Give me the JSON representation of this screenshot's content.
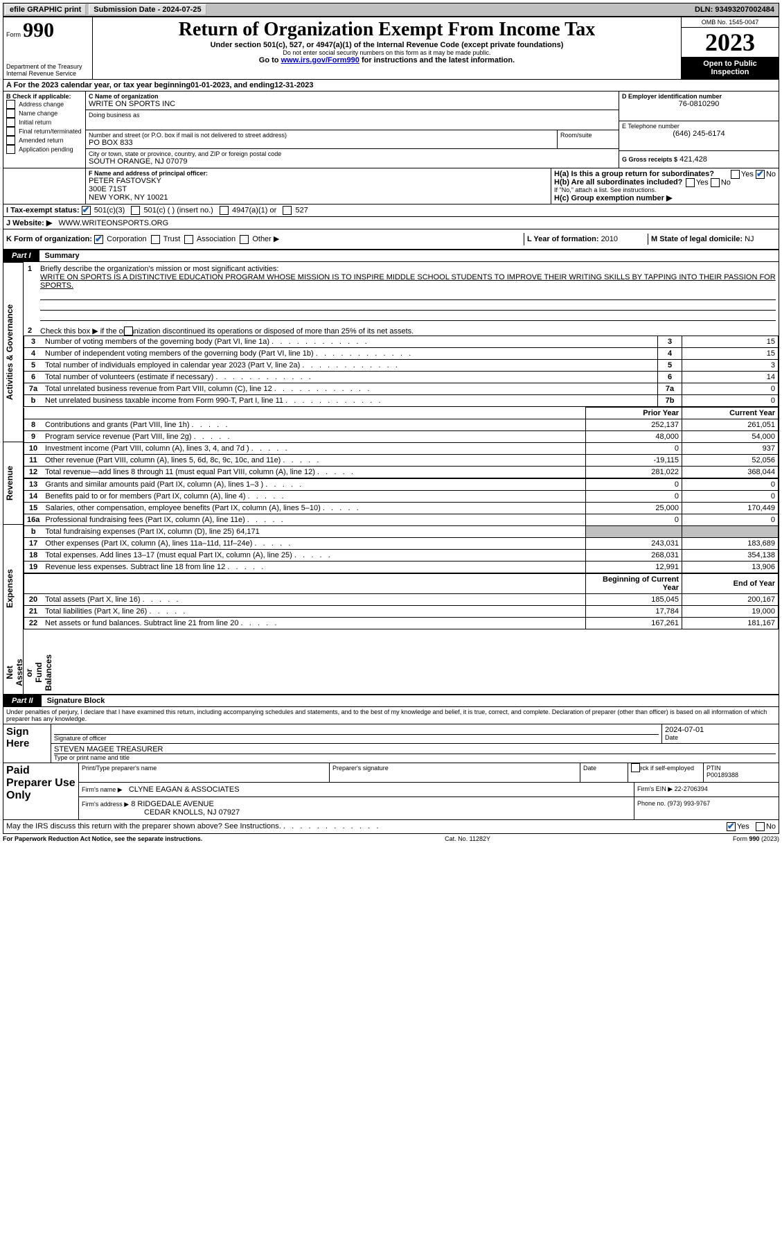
{
  "topbar": {
    "efile": "efile GRAPHIC print",
    "submission_label": "Submission Date - 2024-07-25",
    "dln_label": "DLN: 93493207002484"
  },
  "header": {
    "form_word": "Form",
    "form_number": "990",
    "title": "Return of Organization Exempt From Income Tax",
    "subtitle": "Under section 501(c), 527, or 4947(a)(1) of the Internal Revenue Code (except private foundations)",
    "warn": "Do not enter social security numbers on this form as it may be made public.",
    "goto_prefix": "Go to ",
    "goto_link": "www.irs.gov/Form990",
    "goto_suffix": " for instructions and the latest information.",
    "dept": "Department of the Treasury\nInternal Revenue Service",
    "omb": "OMB No. 1545-0047",
    "year": "2023",
    "open_public": "Open to Public\nInspection"
  },
  "lineA": {
    "prefix": "A For the 2023 calendar year, or tax year beginning ",
    "begin": "01-01-2023",
    "mid": " , and ending ",
    "end": "12-31-2023"
  },
  "boxB": {
    "heading": "B Check if applicable:",
    "items": [
      "Address change",
      "Name change",
      "Initial return",
      "Final return/terminated",
      "Amended return",
      "Application pending"
    ]
  },
  "boxC": {
    "name_label": "C Name of organization",
    "name": "WRITE ON SPORTS INC",
    "dba_label": "Doing business as",
    "dba": "",
    "street_label": "Number and street (or P.O. box if mail is not delivered to street address)",
    "street": "PO BOX 833",
    "room_label": "Room/suite",
    "room": "",
    "city_label": "City or town, state or province, country, and ZIP or foreign postal code",
    "city": "SOUTH ORANGE, NJ  07079"
  },
  "boxD": {
    "label": "D Employer identification number",
    "value": "76-0810290"
  },
  "boxE": {
    "label": "E Telephone number",
    "value": "(646) 245-6174"
  },
  "boxG": {
    "label": "G Gross receipts $",
    "value": "421,428"
  },
  "boxF": {
    "label": "F  Name and address of principal officer:",
    "line1": "PETER FASTOVSKY",
    "line2": "300E 71ST",
    "line3": "NEW YORK, NY  10021"
  },
  "boxH": {
    "ha": "H(a)  Is this a group return for subordinates?",
    "hb": "H(b)  Are all subordinates included?",
    "hb_note": "If \"No,\" attach a list. See instructions.",
    "hc": "H(c)  Group exemption number ▶",
    "yes": "Yes",
    "no": "No"
  },
  "boxI": {
    "label": "I   Tax-exempt status:",
    "c3": "501(c)(3)",
    "c_insert": "501(c) (  ) (insert no.)",
    "a1": "4947(a)(1) or",
    "s527": "527"
  },
  "boxJ": {
    "label": "J   Website: ▶",
    "value": "WWW.WRITEONSPORTS.ORG"
  },
  "boxK": {
    "label": "K Form of organization:",
    "corp": "Corporation",
    "trust": "Trust",
    "assoc": "Association",
    "other": "Other ▶"
  },
  "boxL": {
    "label": "L Year of formation: ",
    "value": "2010"
  },
  "boxM": {
    "label": "M State of legal domicile: ",
    "value": "NJ"
  },
  "part1": {
    "tag": "Part I",
    "title": "Summary"
  },
  "mission": {
    "prompt": "Briefly describe the organization's mission or most significant activities:",
    "text": "WRITE ON SPORTS IS A DISTINCTIVE EDUCATION PROGRAM WHOSE MISSION IS TO INSPIRE MIDDLE SCHOOL STUDENTS TO IMPROVE THEIR WRITING SKILLS BY TAPPING INTO THEIR PASSION FOR SPORTS."
  },
  "summary": {
    "line2": "Check this box ▶         if the organization discontinued its operations or disposed of more than 25% of its net assets.",
    "rows_top": [
      {
        "no": "3",
        "desc": "Number of voting members of the governing body (Part VI, line 1a)",
        "box": "3",
        "val": "15"
      },
      {
        "no": "4",
        "desc": "Number of independent voting members of the governing body (Part VI, line 1b)",
        "box": "4",
        "val": "15"
      },
      {
        "no": "5",
        "desc": "Total number of individuals employed in calendar year 2023 (Part V, line 2a)",
        "box": "5",
        "val": "3"
      },
      {
        "no": "6",
        "desc": "Total number of volunteers (estimate if necessary)",
        "box": "6",
        "val": "14"
      },
      {
        "no": "7a",
        "desc": "Total unrelated business revenue from Part VIII, column (C), line 12",
        "box": "7a",
        "val": "0"
      },
      {
        "no": "b",
        "desc": "Net unrelated business taxable income from Form 990-T, Part I, line 11",
        "box": "7b",
        "val": "0"
      }
    ],
    "col_prior": "Prior Year",
    "col_current": "Current Year",
    "revenue": [
      {
        "no": "8",
        "desc": "Contributions and grants (Part VIII, line 1h)",
        "prior": "252,137",
        "cur": "261,051"
      },
      {
        "no": "9",
        "desc": "Program service revenue (Part VIII, line 2g)",
        "prior": "48,000",
        "cur": "54,000"
      },
      {
        "no": "10",
        "desc": "Investment income (Part VIII, column (A), lines 3, 4, and 7d )",
        "prior": "0",
        "cur": "937"
      },
      {
        "no": "11",
        "desc": "Other revenue (Part VIII, column (A), lines 5, 6d, 8c, 9c, 10c, and 11e)",
        "prior": "-19,115",
        "cur": "52,056"
      },
      {
        "no": "12",
        "desc": "Total revenue—add lines 8 through 11 (must equal Part VIII, column (A), line 12)",
        "prior": "281,022",
        "cur": "368,044"
      }
    ],
    "expenses": [
      {
        "no": "13",
        "desc": "Grants and similar amounts paid (Part IX, column (A), lines 1–3 )",
        "prior": "0",
        "cur": "0"
      },
      {
        "no": "14",
        "desc": "Benefits paid to or for members (Part IX, column (A), line 4)",
        "prior": "0",
        "cur": "0"
      },
      {
        "no": "15",
        "desc": "Salaries, other compensation, employee benefits (Part IX, column (A), lines 5–10)",
        "prior": "25,000",
        "cur": "170,449"
      },
      {
        "no": "16a",
        "desc": "Professional fundraising fees (Part IX, column (A), line 11e)",
        "prior": "0",
        "cur": "0"
      },
      {
        "no": "b",
        "desc": "Total fundraising expenses (Part IX, column (D), line 25) 64,171",
        "prior": "",
        "cur": "",
        "shaded": true
      },
      {
        "no": "17",
        "desc": "Other expenses (Part IX, column (A), lines 11a–11d, 11f–24e)",
        "prior": "243,031",
        "cur": "183,689"
      },
      {
        "no": "18",
        "desc": "Total expenses. Add lines 13–17 (must equal Part IX, column (A), line 25)",
        "prior": "268,031",
        "cur": "354,138"
      },
      {
        "no": "19",
        "desc": "Revenue less expenses. Subtract line 18 from line 12",
        "prior": "12,991",
        "cur": "13,906"
      }
    ],
    "col_begin": "Beginning of Current Year",
    "col_end": "End of Year",
    "netassets": [
      {
        "no": "20",
        "desc": "Total assets (Part X, line 16)",
        "prior": "185,045",
        "cur": "200,167"
      },
      {
        "no": "21",
        "desc": "Total liabilities (Part X, line 26)",
        "prior": "17,784",
        "cur": "19,000"
      },
      {
        "no": "22",
        "desc": "Net assets or fund balances. Subtract line 21 from line 20",
        "prior": "167,261",
        "cur": "181,167"
      }
    ]
  },
  "side_labels": {
    "governance": "Activities & Governance",
    "revenue": "Revenue",
    "expenses": "Expenses",
    "net": "Net Assets or\nFund Balances"
  },
  "part2": {
    "tag": "Part II",
    "title": "Signature Block"
  },
  "penalties": "Under penalties of perjury, I declare that I have examined this return, including accompanying schedules and statements, and to the best of my knowledge and belief, it is true, correct, and complete. Declaration of preparer (other than officer) is based on all information of which preparer has any knowledge.",
  "signhere": {
    "label": "Sign Here",
    "sig_label": "Signature of officer",
    "date": "2024-07-01",
    "date_label": "Date",
    "name": "STEVEN MAGEE  TREASURER",
    "type_label": "Type or print name and title"
  },
  "paid": {
    "label": "Paid Preparer Use Only",
    "print_label": "Print/Type preparer's name",
    "sig_label": "Preparer's signature",
    "date_label": "Date",
    "check_label": "Check          if self-employed",
    "ptin_label": "PTIN",
    "ptin": "P00189388",
    "firm_name_label": "Firm's name  ▶",
    "firm_name": "CLYNE EAGAN & ASSOCIATES",
    "firm_ein_label": "Firm's EIN ▶",
    "firm_ein": "22-2706394",
    "firm_addr_label": "Firm's address ▶",
    "firm_addr1": "8 RIDGEDALE AVENUE",
    "firm_addr2": "CEDAR KNOLLS, NJ  07927",
    "phone_label": "Phone no.",
    "phone": "(973) 993-9767"
  },
  "discuss": {
    "q": "May the IRS discuss this return with the preparer shown above? See Instructions.",
    "yes": "Yes",
    "no": "No"
  },
  "footer": {
    "pra": "For Paperwork Reduction Act Notice, see the separate instructions.",
    "cat": "Cat. No. 11282Y",
    "form": "Form 990 (2023)"
  }
}
